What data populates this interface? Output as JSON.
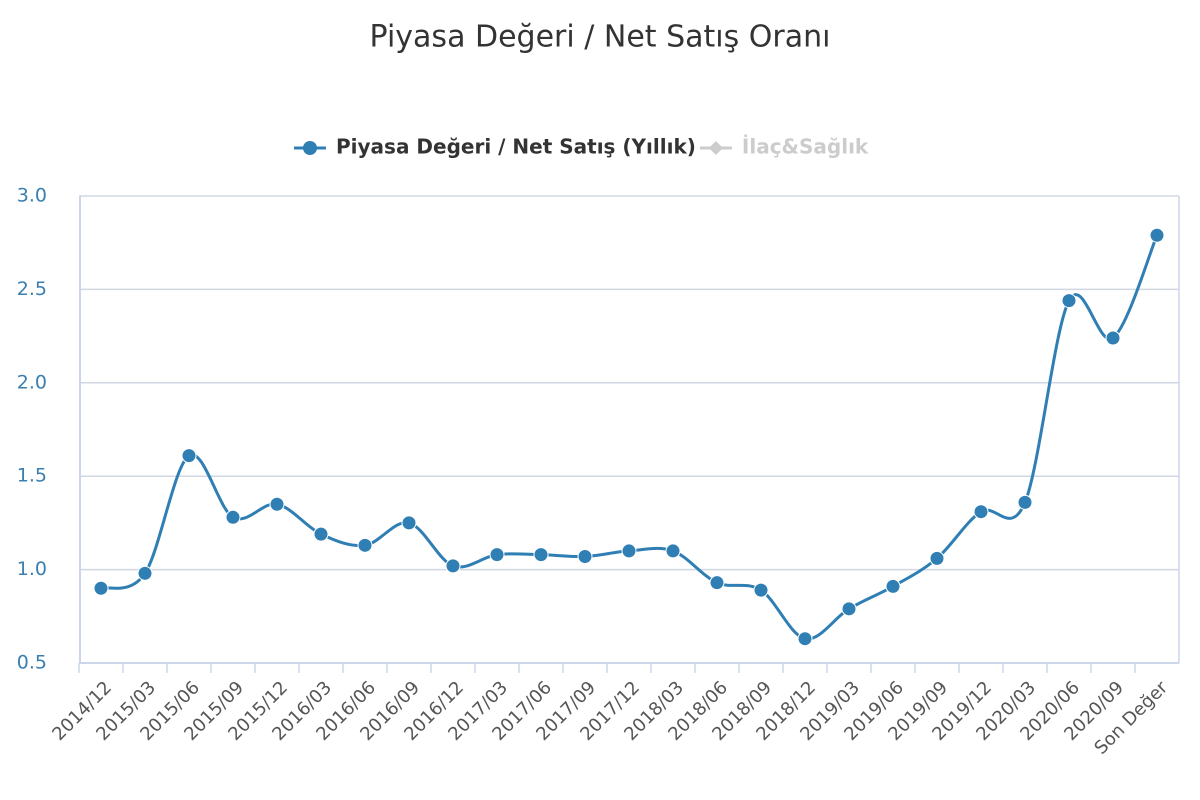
{
  "chart_data": {
    "type": "line",
    "title": "Piyasa Değeri / Net Satış Oranı",
    "categories": [
      "2014/12",
      "2015/03",
      "2015/06",
      "2015/09",
      "2015/12",
      "2016/03",
      "2016/06",
      "2016/09",
      "2016/12",
      "2017/03",
      "2017/06",
      "2017/09",
      "2017/12",
      "2018/03",
      "2018/06",
      "2018/09",
      "2018/12",
      "2019/03",
      "2019/06",
      "2019/09",
      "2019/12",
      "2020/03",
      "2020/06",
      "2020/09",
      "Son Değer"
    ],
    "series": [
      {
        "name": "Piyasa Değeri / Net Satış (Yıllık)",
        "color": "#2f7eb4",
        "values": [
          0.9,
          0.98,
          1.61,
          1.28,
          1.35,
          1.19,
          1.13,
          1.25,
          1.02,
          1.08,
          1.08,
          1.07,
          1.1,
          1.1,
          0.93,
          0.89,
          0.63,
          0.79,
          0.91,
          1.06,
          1.31,
          1.36,
          2.44,
          2.24,
          2.79
        ]
      },
      {
        "name": "İlaç&Sağlık",
        "color": "#cccccc",
        "values": [
          null,
          null,
          null,
          null,
          null,
          null,
          null,
          null,
          null,
          null,
          null,
          null,
          null,
          null,
          null,
          null,
          null,
          null,
          null,
          null,
          null,
          null,
          null,
          null,
          null
        ]
      }
    ],
    "ylim": [
      0.5,
      3.0
    ],
    "yticks": [
      {
        "value": 0.5,
        "label": "0.5"
      },
      {
        "value": 1.0,
        "label": "1.0"
      },
      {
        "value": 1.5,
        "label": "1.5"
      },
      {
        "value": 2.0,
        "label": "2.0"
      },
      {
        "value": 2.5,
        "label": "2.5"
      },
      {
        "value": 3.0,
        "label": "3.0"
      }
    ],
    "grid": true,
    "legend": "top"
  }
}
